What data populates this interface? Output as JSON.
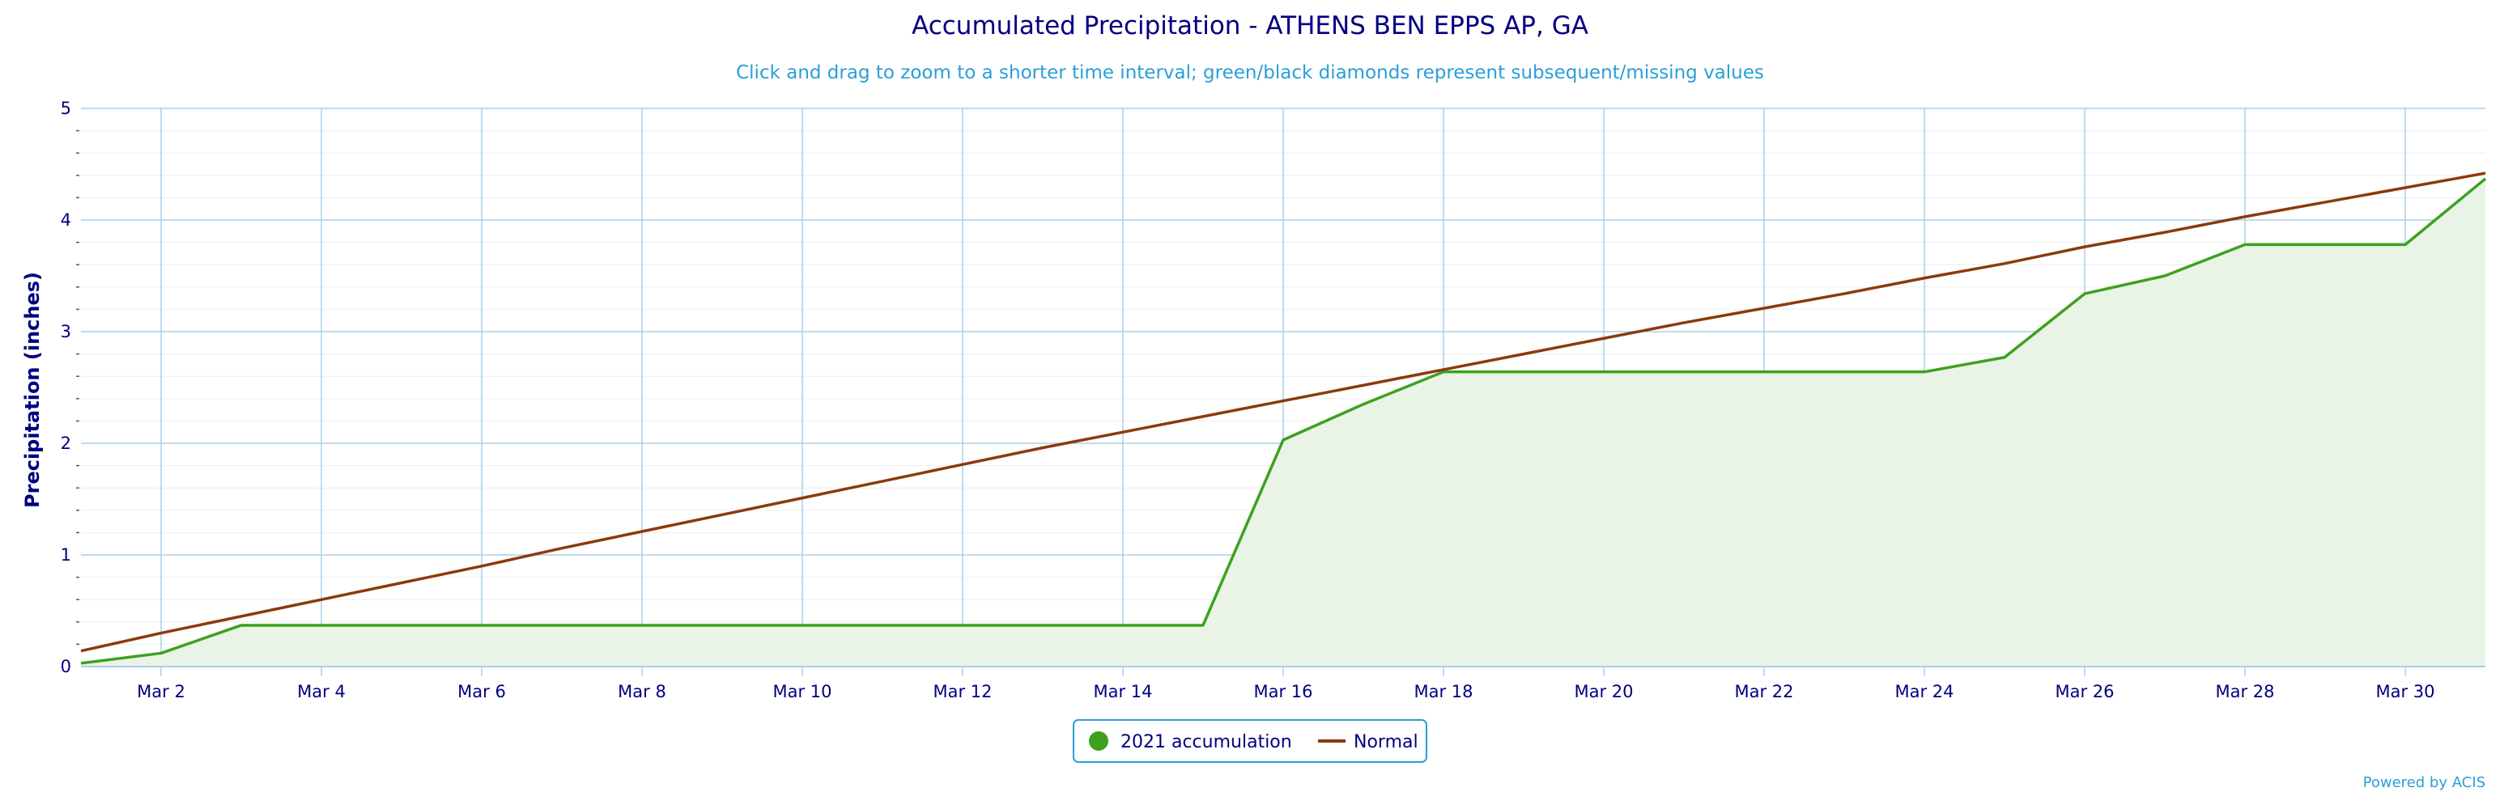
{
  "title": "Accumulated Precipitation - ATHENS BEN EPPS AP, GA",
  "subtitle": "Click and drag to zoom to a shorter time interval; green/black diamonds represent subsequent/missing values",
  "credit": "Powered by ACIS",
  "colors": {
    "accumulation": "#3da11f",
    "accumulation_fill": "#eaf4e6",
    "normal": "#8b3a0e",
    "grid": "#a8cfe8",
    "minor_grid": "#eeeeee",
    "text": "#000080",
    "legend_border": "#2a9fd6"
  },
  "chart_data": {
    "type": "area",
    "ylabel": "Precipitation (inches)",
    "ylim": [
      0,
      5
    ],
    "yticks": [
      0,
      1,
      2,
      3,
      4,
      5
    ],
    "xlim": [
      1,
      31
    ],
    "xticks": [
      2,
      4,
      6,
      8,
      10,
      12,
      14,
      16,
      18,
      20,
      22,
      24,
      26,
      28,
      30
    ],
    "xtick_labels": [
      "Mar 2",
      "Mar 4",
      "Mar 6",
      "Mar 8",
      "Mar 10",
      "Mar 12",
      "Mar 14",
      "Mar 16",
      "Mar 18",
      "Mar 20",
      "Mar 22",
      "Mar 24",
      "Mar 26",
      "Mar 28",
      "Mar 30"
    ],
    "grid": true,
    "legend_position": "bottom-center",
    "series": [
      {
        "name": "2021 accumulation",
        "type": "area",
        "x": [
          1,
          2,
          3,
          4,
          5,
          6,
          7,
          8,
          9,
          10,
          11,
          12,
          13,
          14,
          15,
          16,
          17,
          18,
          19,
          20,
          21,
          22,
          23,
          24,
          25,
          26,
          27,
          28,
          29,
          30,
          31
        ],
        "values": [
          0.03,
          0.12,
          0.37,
          0.37,
          0.37,
          0.37,
          0.37,
          0.37,
          0.37,
          0.37,
          0.37,
          0.37,
          0.37,
          0.37,
          0.37,
          2.03,
          2.35,
          2.64,
          2.64,
          2.64,
          2.64,
          2.64,
          2.64,
          2.64,
          2.77,
          3.34,
          3.5,
          3.78,
          3.78,
          3.78,
          4.37
        ]
      },
      {
        "name": "Normal",
        "type": "line",
        "x": [
          1,
          2,
          3,
          4,
          5,
          6,
          7,
          8,
          9,
          10,
          11,
          12,
          13,
          14,
          15,
          16,
          17,
          18,
          19,
          20,
          21,
          22,
          23,
          24,
          25,
          26,
          27,
          28,
          29,
          30,
          31
        ],
        "values": [
          0.14,
          0.3,
          0.45,
          0.6,
          0.75,
          0.9,
          1.06,
          1.21,
          1.36,
          1.51,
          1.66,
          1.81,
          1.96,
          2.1,
          2.24,
          2.38,
          2.52,
          2.66,
          2.8,
          2.94,
          3.08,
          3.21,
          3.34,
          3.48,
          3.61,
          3.76,
          3.89,
          4.03,
          4.16,
          4.29,
          4.42
        ]
      }
    ]
  }
}
